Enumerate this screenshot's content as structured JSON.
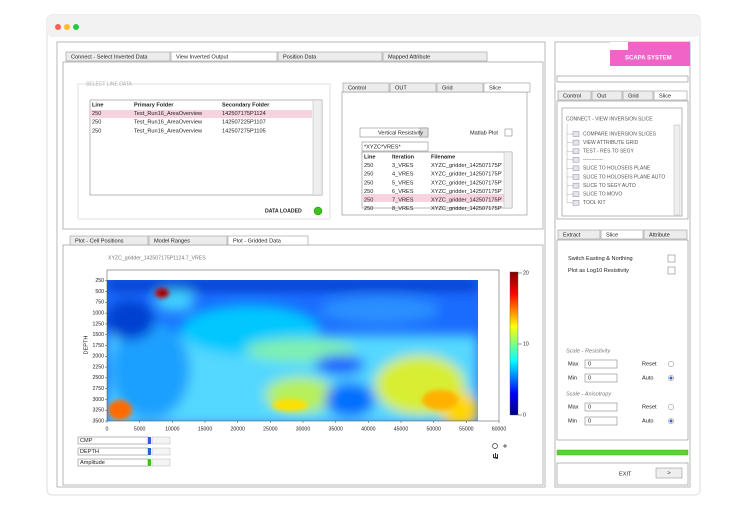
{
  "main_tabs": [
    "Connect - Select Inverted Data",
    "View Inverted Output",
    "Position Data",
    "Mapped Attribute"
  ],
  "line_data": {
    "title": "SELECT LINE DATA",
    "columns": [
      "Line",
      "Primary Folder",
      "Secondary Folder"
    ],
    "rows": [
      [
        "250",
        "Test_Run16_AreaOverview",
        "142507175P1124"
      ],
      [
        "250",
        "Test_Run16_AreaOverview",
        "142507225P1107"
      ],
      [
        "250",
        "Test_Run16_AreaOverview",
        "142507275P1105"
      ]
    ],
    "status": "DATA LOADED"
  },
  "slice_panel": {
    "tabs": [
      "Control",
      "OUT",
      "Grid",
      "Slice"
    ],
    "dropdown": "Vertical Resistivity",
    "checkbox": "Matlab Plot",
    "filter": "*XYZC*VRES*",
    "columns": [
      "Line",
      "Iteration",
      "Filename"
    ],
    "rows": [
      [
        "250",
        "3_VRES",
        "XYZC_gridder_142507175P'"
      ],
      [
        "250",
        "4_VRES",
        "XYZC_gridder_142507175P'"
      ],
      [
        "250",
        "5_VRES",
        "XYZC_gridder_142507175P'"
      ],
      [
        "250",
        "6_VRES",
        "XYZC_gridder_142507175P'"
      ],
      [
        "250",
        "7_VRES",
        "XYZC_gridder_142507175P'"
      ],
      [
        "250",
        "8_VRES",
        "XYZC_gridder_142507175P'"
      ]
    ]
  },
  "plot_tabs": [
    "Plot - Cell Positions",
    "Model Ranges",
    "Plot - Gridded Data"
  ],
  "chart_data": {
    "type": "heatmap",
    "title": "XYZC_gridder_142507175P1124.7_VRES",
    "y_label": "DEPTH",
    "xlim": [
      0,
      60000
    ],
    "xticks": [
      0,
      5000,
      10000,
      15000,
      20000,
      25000,
      30000,
      35000,
      40000,
      45000,
      50000,
      55000,
      60000
    ],
    "ylim": [
      3500,
      0
    ],
    "yticks": [
      250,
      500,
      750,
      1000,
      1250,
      1500,
      1750,
      2000,
      2250,
      2500,
      2750,
      3000,
      3250,
      3500
    ],
    "colorbar": {
      "lim": [
        0,
        20
      ],
      "ticks": [
        20,
        10,
        0
      ]
    }
  },
  "axis_controls": [
    "CMP",
    "DEPTH",
    "Amplitude"
  ],
  "sidebar": {
    "logo": "SCAPA SYSTEM",
    "tabs": [
      "Control",
      "Out",
      "Grid",
      "Slice"
    ],
    "tree_title": "CONNECT - VIEW INVERSION SLICE",
    "tree_items": [
      "COMPARE INVERSION SLICES",
      "VIEW ATTRIBUTE GRID",
      "TEST - RES TO SEGY",
      "------------",
      "SLICE TO HOLOSEIS PLANE",
      "SLICE TO HOLOSEIS PLANE AUTO",
      "SLICE TO SEGY AUTO",
      "SLICE TO MOVO",
      "TOOL KIT"
    ],
    "lower_tabs": [
      "Extract",
      "Slice",
      "Attribute"
    ],
    "options": [
      "Switch Easting & Northing",
      "Plot as Log10 Resistivity"
    ],
    "scales": [
      {
        "title": "Scale - Resistivity",
        "max_label": "Max",
        "max": "0",
        "min_label": "Min",
        "min": "0",
        "reset": "Reset",
        "auto": "Auto"
      },
      {
        "title": "Scale - Anisotropy",
        "max_label": "Max",
        "max": "0",
        "min_label": "Min",
        "min": "0",
        "reset": "Reset",
        "auto": "Auto"
      }
    ],
    "exit": "EXIT",
    "button": ">"
  }
}
